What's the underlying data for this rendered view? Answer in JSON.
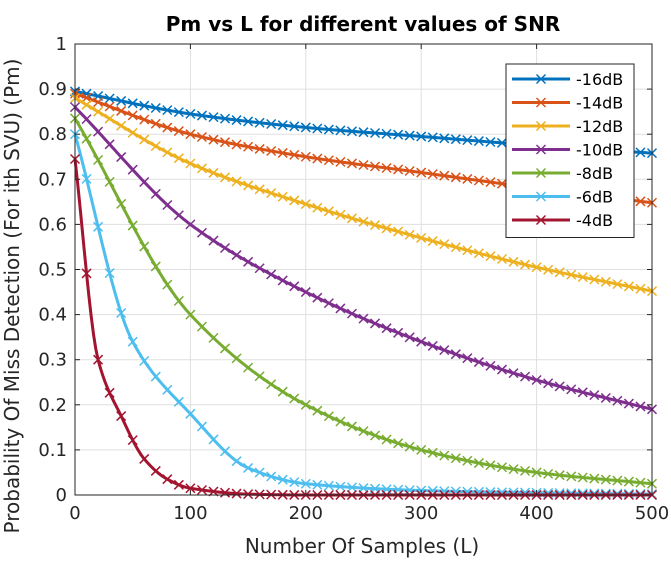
{
  "chart_data": {
    "type": "line",
    "title": "Pm vs L for different values of SNR",
    "xlabel": "Number Of Samples (L)",
    "ylabel": "Probability Of Miss Detection (For ith SVU) (Pm)",
    "xlim": [
      0,
      500
    ],
    "ylim": [
      0,
      1
    ],
    "xticks": [
      0,
      100,
      200,
      300,
      400,
      500
    ],
    "yticks": [
      0,
      0.1,
      0.2,
      0.3,
      0.4,
      0.5,
      0.6,
      0.7,
      0.8,
      0.9,
      1
    ],
    "xtick_labels": [
      "0",
      "100",
      "200",
      "300",
      "400",
      "500"
    ],
    "ytick_labels": [
      "0",
      "0.1",
      "0.2",
      "0.3",
      "0.4",
      "0.5",
      "0.6",
      "0.7",
      "0.8",
      "0.9",
      "1"
    ],
    "grid": true,
    "legend_position": "top-right",
    "marker": "x",
    "marker_step_samples": 10,
    "series": [
      {
        "name": "-16dB",
        "color": "#0072BD",
        "x": [
          0,
          100,
          200,
          300,
          400,
          500
        ],
        "values": [
          0.895,
          0.845,
          0.815,
          0.795,
          0.775,
          0.758
        ]
      },
      {
        "name": "-14dB",
        "color": "#D95319",
        "x": [
          0,
          100,
          200,
          300,
          400,
          500
        ],
        "values": [
          0.89,
          0.8,
          0.75,
          0.715,
          0.68,
          0.648
        ]
      },
      {
        "name": "-12dB",
        "color": "#EDB120",
        "x": [
          0,
          100,
          200,
          300,
          400,
          500
        ],
        "values": [
          0.88,
          0.735,
          0.645,
          0.57,
          0.505,
          0.452
        ]
      },
      {
        "name": "-10dB",
        "color": "#7E2F8E",
        "x": [
          0,
          100,
          200,
          300,
          400,
          500
        ],
        "values": [
          0.86,
          0.6,
          0.45,
          0.34,
          0.255,
          0.19
        ]
      },
      {
        "name": "-8dB",
        "color": "#77AC30",
        "x": [
          0,
          100,
          200,
          300,
          400,
          500
        ],
        "values": [
          0.835,
          0.4,
          0.2,
          0.1,
          0.05,
          0.025
        ]
      },
      {
        "name": "-6dB",
        "color": "#4DBEEE",
        "x": [
          0,
          50,
          100,
          150,
          200,
          300,
          400,
          500
        ],
        "values": [
          0.8,
          0.34,
          0.18,
          0.06,
          0.025,
          0.01,
          0.005,
          0.002
        ]
      },
      {
        "name": "-4dB",
        "color": "#A2142F",
        "x": [
          0,
          20,
          40,
          60,
          80,
          100,
          150,
          200,
          500
        ],
        "values": [
          0.745,
          0.3,
          0.175,
          0.08,
          0.035,
          0.015,
          0.002,
          0.0,
          0.0
        ]
      }
    ]
  }
}
